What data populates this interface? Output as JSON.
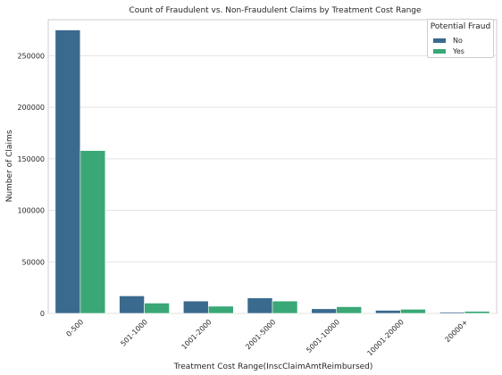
{
  "chart_data": {
    "type": "bar",
    "title": "Count of Fraudulent vs. Non-Fraudulent Claims by Treatment Cost Range",
    "xlabel": "Treatment Cost Range(InscClaimAmtReimbursed)",
    "ylabel": "Number of Claims",
    "categories": [
      "0-500",
      "501-1000",
      "1001-2000",
      "2001-5000",
      "5001-10000",
      "10001-20000",
      "20000+"
    ],
    "series": [
      {
        "name": "No",
        "color": "#3b6a8f",
        "values": [
          275000,
          17000,
          12000,
          15000,
          4500,
          3000,
          1200
        ]
      },
      {
        "name": "Yes",
        "color": "#3aa876",
        "values": [
          158000,
          10000,
          7000,
          12000,
          6500,
          4000,
          2000
        ]
      }
    ],
    "yticks": [
      0,
      50000,
      100000,
      150000,
      200000,
      250000
    ],
    "ylim": [
      0,
      285000
    ],
    "grid": true,
    "legend": {
      "title": "Potential Fraud",
      "position": "top-right"
    }
  }
}
